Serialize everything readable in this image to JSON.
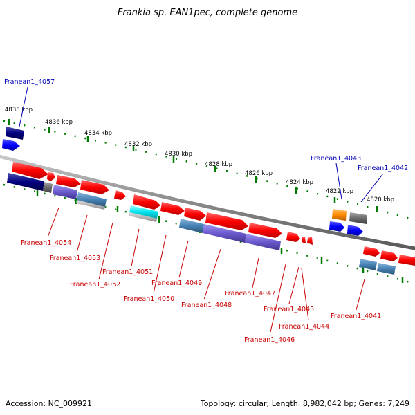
{
  "title": "Frankia sp. EAN1pec, complete genome",
  "footer": {
    "accession": "Accession: NC_009921",
    "summary": "Topology: circular; Length: 8,982,042 bp; Genes: 7,249"
  },
  "scale_labels": [
    "4838 kbp",
    "4836 kbp",
    "4834 kbp",
    "4832 kbp",
    "4830 kbp",
    "4828 kbp",
    "4826 kbp",
    "4824 kbp",
    "4822 kbp",
    "4820 kbp"
  ],
  "gene_labels": {
    "g4057": "Franean1_4057",
    "g4043": "Franean1_4043",
    "g4042": "Franean1_4042",
    "g4054": "Franean1_4054",
    "g4053": "Franean1_4053",
    "g4052": "Franean1_4052",
    "g4051": "Franean1_4051",
    "g4050": "Franean1_4050",
    "g4049": "Franean1_4049",
    "g4048": "Franean1_4048",
    "g4047": "Franean1_4047",
    "g4046": "Franean1_4046",
    "g4045": "Franean1_4045",
    "g4044": "Franean1_4044",
    "g4041": "Franean1_4041"
  },
  "colors": {
    "backbone": "#8a8a8a",
    "tick": "#007a00",
    "forward_gene": "#ff0000",
    "blue_gene": "#0000ff",
    "navy": "#00007a",
    "purple": "#6a5acd",
    "steel": "#4682b4",
    "cyan": "#00e5ee",
    "orange": "#ff8c00",
    "grey": "#6b6b6b",
    "label_blue": "#0000b4",
    "label_red": "#c80000"
  }
}
